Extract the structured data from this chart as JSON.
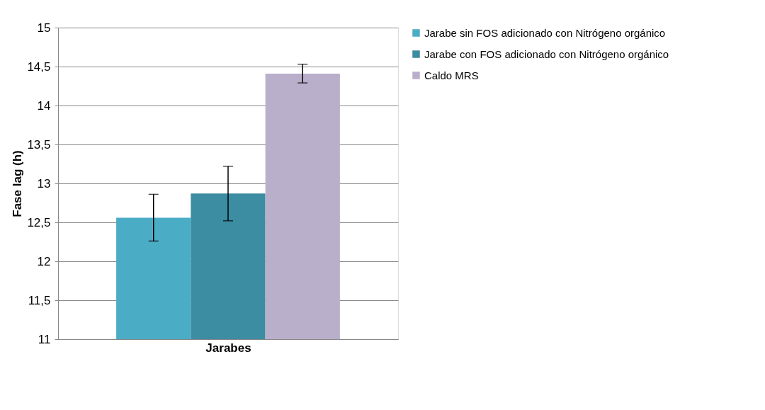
{
  "chart_data": {
    "type": "bar",
    "xlabel": "Jarabes",
    "ylabel": "Fase lag (h)",
    "categories": [
      null
    ],
    "series": [
      {
        "name": "Jarabe sin FOS adicionado con Nitrógeno orgánico",
        "color": "#4bacc6",
        "values": [
          12.56
        ],
        "errors": [
          0.3
        ]
      },
      {
        "name": "Jarabe con FOS adicionado con Nitrógeno orgánico",
        "color": "#3c8ca2",
        "values": [
          12.87
        ],
        "errors": [
          0.35
        ]
      },
      {
        "name": "Caldo MRS",
        "color": "#b9afcb",
        "values": [
          14.41
        ],
        "errors": [
          0.12
        ]
      }
    ],
    "ylim": [
      11,
      15
    ],
    "yticks": [
      11,
      {
        "value": 11.5,
        "label": "11,5"
      },
      12,
      {
        "value": 12.5,
        "label": "12,5"
      },
      13,
      {
        "value": 13.5,
        "label": "13,5"
      },
      14,
      {
        "value": 14.5,
        "label": "14,5"
      },
      15
    ],
    "grid": "y",
    "legend": "right"
  }
}
